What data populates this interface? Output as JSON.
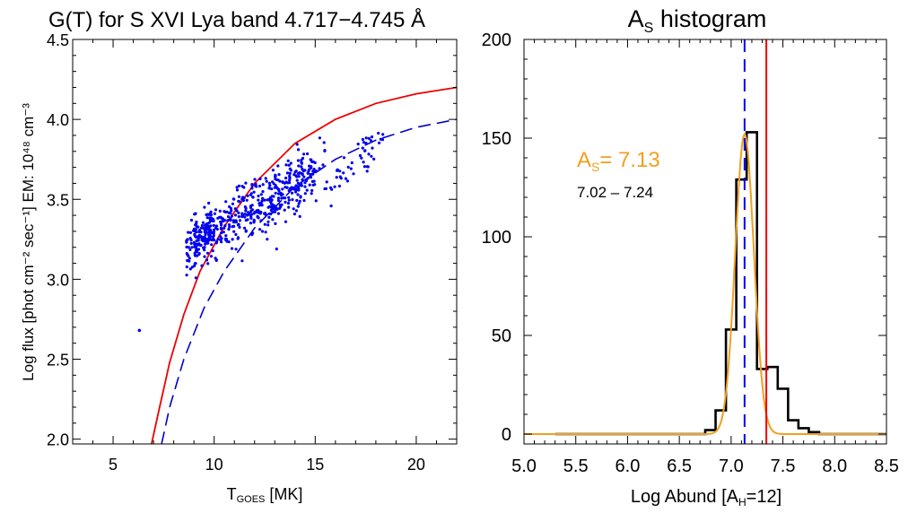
{
  "chart_data": [
    {
      "type": "scatter",
      "title": "G(T) for S XVI Lya band 4.717−4.745 Å",
      "xlabel_main": "T",
      "xlabel_sub": "GOES",
      "xlabel_unit": " [MK]",
      "ylabel": "Log flux  [phot cm⁻² sec⁻¹] EM: 10⁴⁸ cm⁻³",
      "xlim": [
        3.0,
        22.0
      ],
      "ylim": [
        1.97,
        4.5
      ],
      "xticks": [
        5,
        10,
        15,
        20
      ],
      "yticks": [
        2.0,
        2.5,
        3.0,
        3.5,
        4.0,
        4.5
      ],
      "ytick_labels": [
        "2.0",
        "2.5",
        "3.0",
        "3.5",
        "4.0",
        "4.5"
      ],
      "colors": {
        "points": "#0000ee",
        "solid_curve": "#ee0000",
        "dashed_curve": "#0000cc"
      },
      "solid_curve": [
        [
          6.9,
          1.97
        ],
        [
          7.3,
          2.2
        ],
        [
          7.8,
          2.48
        ],
        [
          8.5,
          2.78
        ],
        [
          9.3,
          3.05
        ],
        [
          10.5,
          3.33
        ],
        [
          12,
          3.6
        ],
        [
          14,
          3.85
        ],
        [
          16,
          4.0
        ],
        [
          18,
          4.1
        ],
        [
          20,
          4.16
        ],
        [
          22,
          4.2
        ]
      ],
      "dashed_curve": [
        [
          7.4,
          1.97
        ],
        [
          7.8,
          2.2
        ],
        [
          8.5,
          2.5
        ],
        [
          9.5,
          2.82
        ],
        [
          10.5,
          3.05
        ],
        [
          12,
          3.32
        ],
        [
          14,
          3.58
        ],
        [
          16,
          3.75
        ],
        [
          18,
          3.87
        ],
        [
          20,
          3.95
        ],
        [
          22,
          4.0
        ]
      ],
      "outlier_point": [
        6.3,
        2.68
      ],
      "scatter_trend": {
        "x_range": [
          8.5,
          18.5
        ],
        "slope": 0.075,
        "intercept": 2.55
      }
    },
    {
      "type": "histogram",
      "title_main": "A",
      "title_sub": "S",
      "title_rest": " histogram",
      "xlabel_prefix": "Log Abund [A",
      "xlabel_sub": "H",
      "xlabel_suffix": "=12]",
      "xlim": [
        5.0,
        8.5
      ],
      "ylim": [
        -5,
        200
      ],
      "xticks": [
        5.0,
        5.5,
        6.0,
        6.5,
        7.0,
        7.5,
        8.0,
        8.5
      ],
      "xtick_labels": [
        "5.0",
        "5.5",
        "6.0",
        "6.5",
        "7.0",
        "7.5",
        "8.0",
        "8.5"
      ],
      "yticks": [
        0,
        50,
        100,
        150,
        200
      ],
      "ytick_labels": [
        "0",
        "50",
        "100",
        "150",
        "200"
      ],
      "bin_edges": [
        5.3,
        5.85,
        6.75,
        6.85,
        6.95,
        7.05,
        7.15,
        7.25,
        7.35,
        7.45,
        7.55,
        7.65,
        7.75,
        7.85,
        8.5
      ],
      "bin_counts": [
        0,
        0,
        2,
        12,
        53,
        129,
        153,
        33,
        34,
        23,
        7,
        3,
        1,
        0
      ],
      "gaussian": {
        "mu": 7.13,
        "sigma": 0.09,
        "amplitude": 152
      },
      "vline_dashed": 7.13,
      "vline_solid": 7.34,
      "annotation": {
        "label_main": "A",
        "label_sub": "S",
        "label_value": "= 7.13",
        "range": "7.02 – 7.24"
      },
      "colors": {
        "histogram": "#000000",
        "gaussian": "#f0a020",
        "dashed": "#0000ee",
        "solid": "#ee0000",
        "annotation": "#f0a020"
      }
    }
  ]
}
